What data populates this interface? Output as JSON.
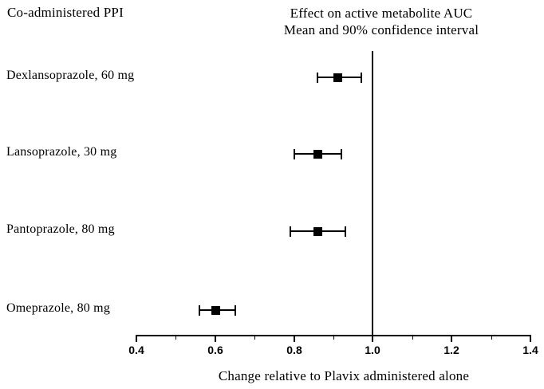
{
  "chart_data": {
    "type": "scatter",
    "subtype": "forest-plot",
    "left_column_header": "Co-administered PPI",
    "title": "Effect on active metabolite AUC",
    "subtitle": "Mean and 90% confidence interval",
    "xlabel": "Change relative to Plavix administered alone",
    "xlim": [
      0.4,
      1.4
    ],
    "reference_line_x": 1.0,
    "grid": false,
    "legend": false,
    "x_major_ticks": [
      {
        "value": 0.4,
        "label": "0.4"
      },
      {
        "value": 0.6,
        "label": "0.6"
      },
      {
        "value": 0.8,
        "label": "0.8"
      },
      {
        "value": 1.0,
        "label": "1.0"
      },
      {
        "value": 1.2,
        "label": "1.2"
      },
      {
        "value": 1.4,
        "label": "1.4"
      }
    ],
    "x_minor_ticks": [
      0.5,
      0.7,
      0.9,
      1.1,
      1.3
    ],
    "rows": [
      {
        "label": "Dexlansoprazole, 60 mg",
        "mean": 0.91,
        "ci_low": 0.86,
        "ci_high": 0.97
      },
      {
        "label": "Lansoprazole, 30 mg",
        "mean": 0.86,
        "ci_low": 0.8,
        "ci_high": 0.92
      },
      {
        "label": "Pantoprazole, 80 mg",
        "mean": 0.86,
        "ci_low": 0.79,
        "ci_high": 0.93
      },
      {
        "label": "Omeprazole, 80 mg",
        "mean": 0.6,
        "ci_low": 0.56,
        "ci_high": 0.65
      }
    ]
  }
}
